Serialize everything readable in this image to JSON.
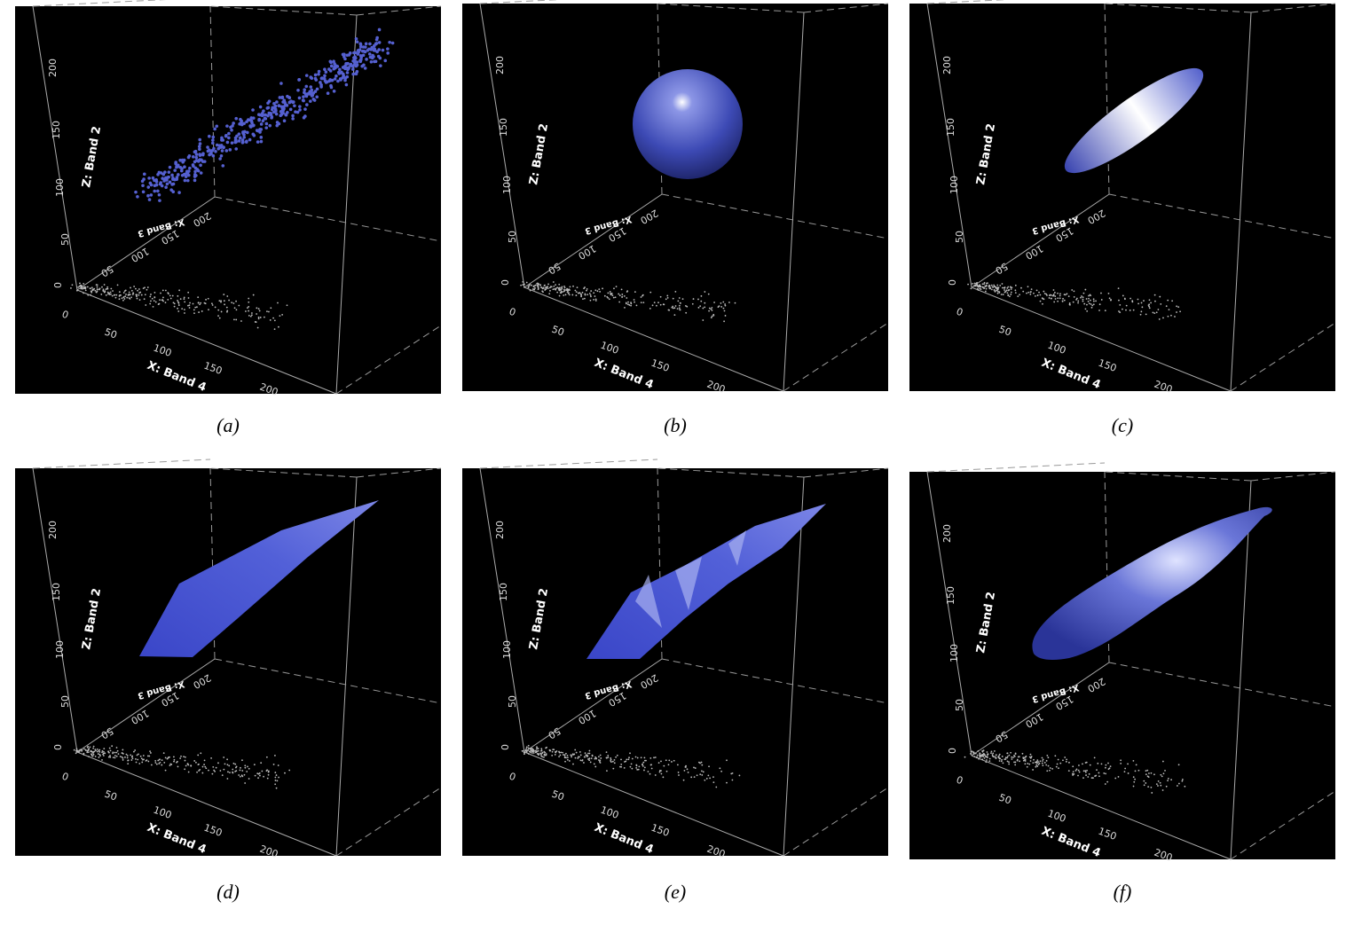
{
  "panels": [
    {
      "caption": "(a)",
      "x_axis": {
        "label": "X: Band 4",
        "ticks": [
          "0",
          "50",
          "100",
          "150",
          "200"
        ]
      },
      "z_axis": {
        "label": "Z: Band 2",
        "ticks": [
          "0",
          "50",
          "100",
          "150",
          "200"
        ]
      },
      "y_axis": {
        "label": "X: Band 3",
        "ticks": [
          "50",
          "100",
          "150",
          "200"
        ]
      }
    },
    {
      "caption": "(b)",
      "x_axis": {
        "label": "X: Band 4",
        "ticks": [
          "0",
          "50",
          "100",
          "150",
          "200"
        ]
      },
      "z_axis": {
        "label": "Z: Band 2",
        "ticks": [
          "0",
          "50",
          "100",
          "150",
          "200"
        ]
      },
      "y_axis": {
        "label": "X: Band 3",
        "ticks": [
          "50",
          "100",
          "150",
          "200"
        ]
      }
    },
    {
      "caption": "(c)",
      "x_axis": {
        "label": "X: Band 4",
        "ticks": [
          "0",
          "50",
          "100",
          "150",
          "200"
        ]
      },
      "z_axis": {
        "label": "Z: Band 2",
        "ticks": [
          "0",
          "50",
          "100",
          "150",
          "200"
        ]
      },
      "y_axis": {
        "label": "X: Band 3",
        "ticks": [
          "50",
          "100",
          "150",
          "200"
        ]
      }
    },
    {
      "caption": "(d)",
      "x_axis": {
        "label": "X: Band 4",
        "ticks": [
          "0",
          "50",
          "100",
          "150",
          "200"
        ]
      },
      "z_axis": {
        "label": "Z: Band 2",
        "ticks": [
          "0",
          "50",
          "100",
          "150",
          "200"
        ]
      },
      "y_axis": {
        "label": "X: Band 3",
        "ticks": [
          "50",
          "100",
          "150",
          "200"
        ]
      }
    },
    {
      "caption": "(e)",
      "x_axis": {
        "label": "X: Band 4",
        "ticks": [
          "0",
          "50",
          "100",
          "150",
          "200"
        ]
      },
      "z_axis": {
        "label": "Z: Band 2",
        "ticks": [
          "0",
          "50",
          "100",
          "150",
          "200"
        ]
      },
      "y_axis": {
        "label": "X: Band 3",
        "ticks": [
          "50",
          "100",
          "150",
          "200"
        ]
      }
    },
    {
      "caption": "(f)",
      "x_axis": {
        "label": "X: Band 4",
        "ticks": [
          "0",
          "50",
          "100",
          "150",
          "200"
        ]
      },
      "z_axis": {
        "label": "Z: Band 2",
        "ticks": [
          "0",
          "50",
          "100",
          "150",
          "200"
        ]
      },
      "y_axis": {
        "label": "X: Band 3",
        "ticks": [
          "50",
          "100",
          "150",
          "200"
        ]
      }
    }
  ]
}
